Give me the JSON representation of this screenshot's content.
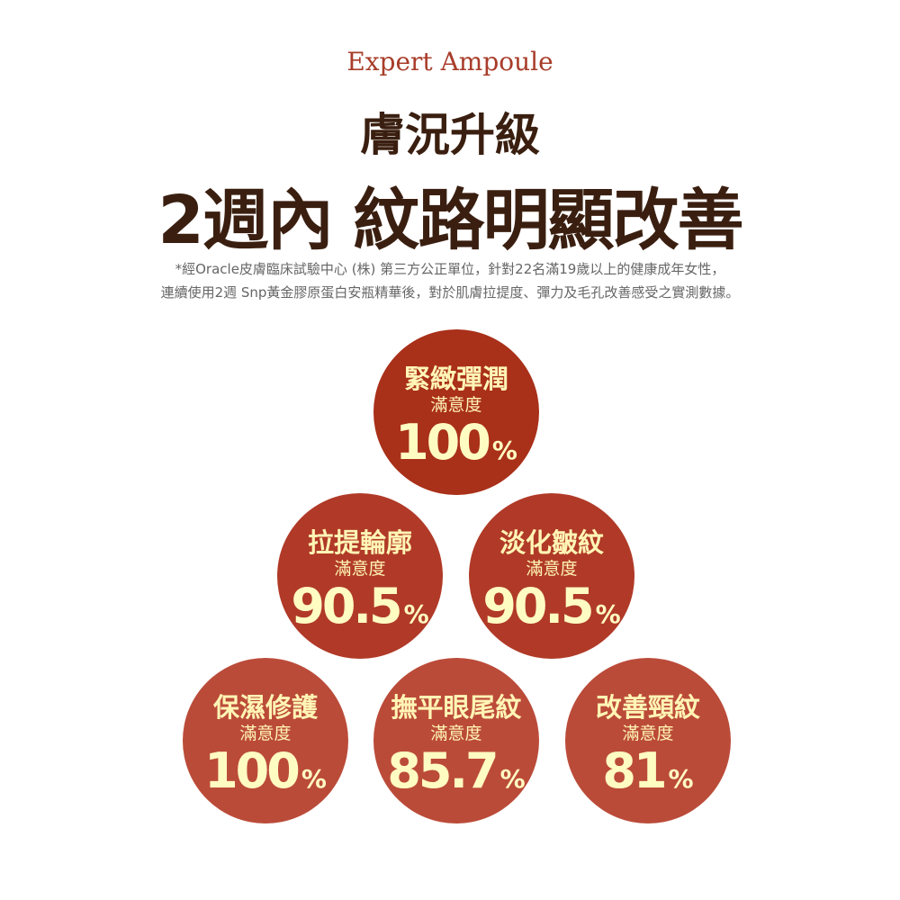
{
  "brand": "Expert Ampoule",
  "subtitle": "膚況升級",
  "title": "2週內 紋路明顯改善",
  "note_lines": [
    "*經Oracle皮膚臨床試驗中心 (株) 第三方公正單位，針對22名滿19歲以上的健康成年女性，",
    "連續使用2週 Snp黃金膠原蛋白安瓶精華後，對於肌膚拉提度、彈力及毛孔改善感受之實測數據。"
  ],
  "satisfaction_label": "滿意度",
  "percent_sign": "%",
  "results": [
    {
      "label": "緊緻彈潤",
      "value": "100",
      "color": "#a93019"
    },
    {
      "label": "拉提輪廓",
      "value": "90.5",
      "color": "#b03a27"
    },
    {
      "label": "淡化皺紋",
      "value": "90.5",
      "color": "#b03a27"
    },
    {
      "label": "保濕修護",
      "value": "100",
      "color": "#bb4b39"
    },
    {
      "label": "撫平眼尾紋",
      "value": "85.7",
      "color": "#bb4b39"
    },
    {
      "label": "改善頸紋",
      "value": "81",
      "color": "#bb4b39"
    }
  ]
}
